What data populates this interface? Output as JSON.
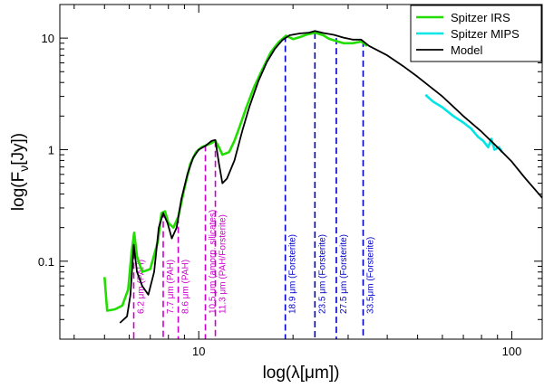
{
  "chart_data": {
    "type": "line",
    "x_scale": "log",
    "y_scale": "log",
    "xlabel": "log(λ[μm])",
    "ylabel": "log(F_ν[Jy])",
    "xlim": [
      3.6,
      125
    ],
    "ylim": [
      0.02,
      20
    ],
    "x_ticks": [
      {
        "value": 10,
        "label": "10"
      },
      {
        "value": 100,
        "label": "100"
      }
    ],
    "y_ticks": [
      {
        "value": 0.1,
        "label": "0.1"
      },
      {
        "value": 1,
        "label": "1"
      },
      {
        "value": 10,
        "label": "10"
      }
    ],
    "grid": false,
    "legend_position": "top-right",
    "colors": {
      "irs": "#22dd00",
      "mips": "#00e5e5",
      "model": "#000000",
      "pah": "#cc00cc",
      "forsterite": "#0000cc"
    },
    "series": [
      {
        "name": "Spitzer IRS",
        "color_key": "irs",
        "points": [
          [
            5.0,
            0.072
          ],
          [
            5.1,
            0.036
          ],
          [
            5.4,
            0.037
          ],
          [
            5.7,
            0.04
          ],
          [
            5.95,
            0.056
          ],
          [
            6.1,
            0.12
          ],
          [
            6.22,
            0.18
          ],
          [
            6.35,
            0.11
          ],
          [
            6.6,
            0.08
          ],
          [
            7.0,
            0.085
          ],
          [
            7.4,
            0.15
          ],
          [
            7.6,
            0.27
          ],
          [
            7.8,
            0.28
          ],
          [
            8.0,
            0.22
          ],
          [
            8.3,
            0.2
          ],
          [
            8.6,
            0.25
          ],
          [
            9.0,
            0.45
          ],
          [
            9.4,
            0.75
          ],
          [
            9.8,
            0.95
          ],
          [
            10.2,
            1.05
          ],
          [
            10.6,
            1.1
          ],
          [
            11.0,
            1.15
          ],
          [
            11.3,
            1.2
          ],
          [
            11.6,
            1.05
          ],
          [
            11.9,
            0.9
          ],
          [
            12.5,
            0.95
          ],
          [
            13.0,
            1.2
          ],
          [
            13.5,
            1.6
          ],
          [
            14.2,
            2.4
          ],
          [
            15.0,
            3.6
          ],
          [
            16.0,
            5.3
          ],
          [
            17.0,
            7.5
          ],
          [
            18.0,
            9.2
          ],
          [
            19.0,
            10.5
          ],
          [
            20.0,
            9.8
          ],
          [
            21.0,
            10.2
          ],
          [
            22.0,
            10.7
          ],
          [
            23.5,
            11.2
          ],
          [
            25.0,
            10.6
          ],
          [
            26.0,
            9.9
          ],
          [
            27.5,
            9.4
          ],
          [
            29.0,
            9.0
          ],
          [
            31.0,
            9.0
          ],
          [
            33.0,
            9.3
          ],
          [
            34.5,
            8.5
          ]
        ]
      },
      {
        "name": "Spitzer MIPS",
        "color_key": "mips",
        "points": [
          [
            53,
            3.1
          ],
          [
            56,
            2.7
          ],
          [
            60,
            2.4
          ],
          [
            65,
            2.0
          ],
          [
            70,
            1.75
          ],
          [
            74,
            1.55
          ],
          [
            78,
            1.3
          ],
          [
            81,
            1.2
          ],
          [
            84,
            1.05
          ],
          [
            86,
            1.25
          ],
          [
            88,
            1.0
          ],
          [
            91,
            1.05
          ],
          [
            93,
            0.95
          ]
        ]
      },
      {
        "name": "Model",
        "color_key": "model",
        "points": [
          [
            5.6,
            0.028
          ],
          [
            5.9,
            0.032
          ],
          [
            6.05,
            0.05
          ],
          [
            6.2,
            0.14
          ],
          [
            6.35,
            0.08
          ],
          [
            6.6,
            0.06
          ],
          [
            6.9,
            0.05
          ],
          [
            7.2,
            0.08
          ],
          [
            7.45,
            0.2
          ],
          [
            7.7,
            0.27
          ],
          [
            7.95,
            0.22
          ],
          [
            8.2,
            0.16
          ],
          [
            8.5,
            0.2
          ],
          [
            8.8,
            0.36
          ],
          [
            9.2,
            0.6
          ],
          [
            9.6,
            0.85
          ],
          [
            10.0,
            1.0
          ],
          [
            10.5,
            1.08
          ],
          [
            11.0,
            1.2
          ],
          [
            11.3,
            1.22
          ],
          [
            11.6,
            0.75
          ],
          [
            11.9,
            0.5
          ],
          [
            12.3,
            0.55
          ],
          [
            13.0,
            0.8
          ],
          [
            13.8,
            1.5
          ],
          [
            14.5,
            2.4
          ],
          [
            15.5,
            4.1
          ],
          [
            16.5,
            6.1
          ],
          [
            17.5,
            8.0
          ],
          [
            18.5,
            9.6
          ],
          [
            19.5,
            10.6
          ],
          [
            21.0,
            11.0
          ],
          [
            22.5,
            11.2
          ],
          [
            23.5,
            11.6
          ],
          [
            25.0,
            11.1
          ],
          [
            27.0,
            10.7
          ],
          [
            29.0,
            10.1
          ],
          [
            31.0,
            9.7
          ],
          [
            33.0,
            9.7
          ],
          [
            35.0,
            8.5
          ],
          [
            40,
            7.0
          ],
          [
            45,
            5.6
          ],
          [
            50,
            4.5
          ],
          [
            60,
            3.0
          ],
          [
            70,
            2.0
          ],
          [
            80,
            1.45
          ],
          [
            90,
            1.05
          ],
          [
            100,
            0.78
          ],
          [
            110,
            0.56
          ],
          [
            125,
            0.37
          ]
        ]
      }
    ],
    "features": [
      {
        "group": "pah",
        "x": 6.2,
        "y_top": 0.18,
        "label": "6.2 μm (PAH)"
      },
      {
        "group": "pah",
        "x": 7.7,
        "y_top": 0.28,
        "label": "7.7 μm (PAH)"
      },
      {
        "group": "pah",
        "x": 8.6,
        "y_top": 0.25,
        "label": "8.6 μm (PAH)"
      },
      {
        "group": "pah",
        "x": 10.5,
        "y_top": 1.1,
        "label": "10.5 μm (amorp. silicates)"
      },
      {
        "group": "pah",
        "x": 11.3,
        "y_top": 1.2,
        "label": "11.3 μm (PAH/Forsterite)"
      },
      {
        "group": "forsterite",
        "x": 18.9,
        "y_top": 10.5,
        "label": "18.9 μm (Forsterite)"
      },
      {
        "group": "forsterite",
        "x": 23.5,
        "y_top": 11.2,
        "label": "23.5 μm (Forsterite)"
      },
      {
        "group": "forsterite",
        "x": 27.5,
        "y_top": 10.0,
        "label": "27.5 μm (Forsterite)"
      },
      {
        "group": "forsterite",
        "x": 33.5,
        "y_top": 9.5,
        "label": "33.5μm (Forsterite)"
      }
    ],
    "legend": [
      {
        "label": "Spitzer IRS",
        "color_key": "irs"
      },
      {
        "label": "Spitzer MIPS",
        "color_key": "mips"
      },
      {
        "label": "Model",
        "color_key": "model"
      }
    ]
  }
}
